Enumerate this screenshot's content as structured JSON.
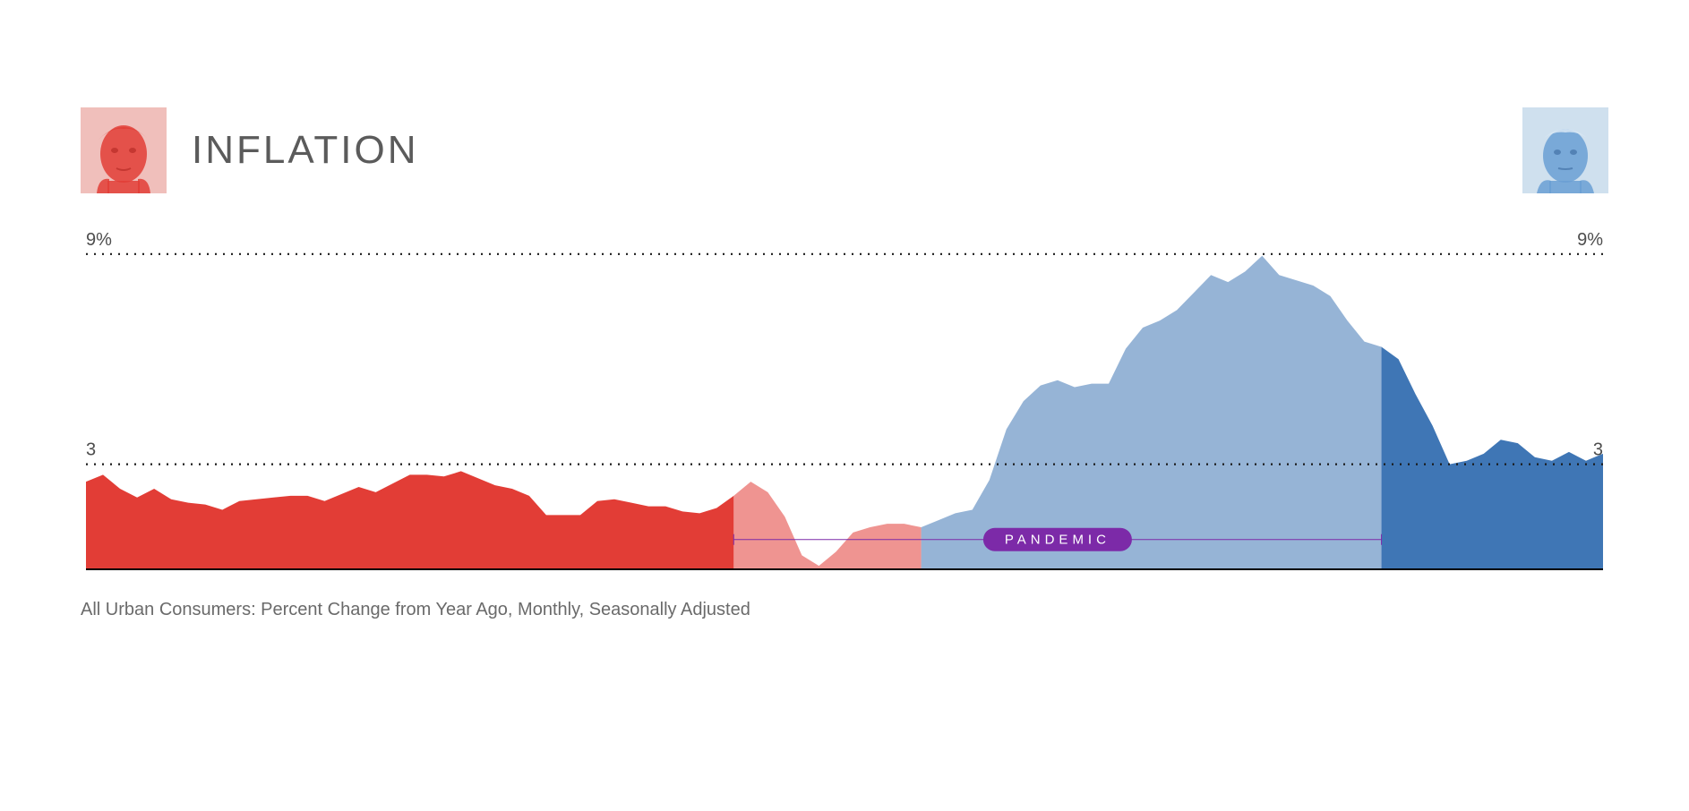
{
  "title": "INFLATION",
  "caption": "All Urban Consumers: Percent Change from Year Ago, Monthly, Seasonally Adjusted",
  "chart": {
    "type": "area",
    "y_ticks": [
      {
        "value": 3,
        "label_left": "3",
        "label_right": "3"
      },
      {
        "value": 9,
        "label_left": "9%",
        "label_right": "9%"
      }
    ],
    "ylim": [
      0,
      9.2
    ],
    "grid_color": "#1a1a1a",
    "baseline_color": "#000000",
    "background_color": "#ffffff",
    "label_fontsize": 20,
    "pandemic": {
      "label": "PANDEMIC",
      "start_index": 38,
      "end_index": 76,
      "pill_color": "#7c2aa8",
      "line_color": "#7c2aa8",
      "text_color": "#ffffff"
    },
    "segments": [
      {
        "name": "trump-pre-pandemic",
        "fill": "#e23d36",
        "opacity": 1.0,
        "start_index": 0,
        "end_index": 38,
        "values": [
          2.5,
          2.7,
          2.3,
          2.05,
          2.3,
          2.0,
          1.9,
          1.85,
          1.7,
          1.95,
          2.0,
          2.05,
          2.1,
          2.1,
          1.95,
          2.15,
          2.35,
          2.2,
          2.45,
          2.7,
          2.7,
          2.65,
          2.8,
          2.6,
          2.4,
          2.3,
          2.1,
          1.55,
          1.55,
          1.55,
          1.95,
          2.0,
          1.9,
          1.8,
          1.8,
          1.65,
          1.6,
          1.75,
          2.1
        ]
      },
      {
        "name": "trump-pandemic",
        "fill": "#e23d36",
        "opacity": 0.55,
        "start_index": 38,
        "end_index": 49,
        "values": [
          2.1,
          2.5,
          2.2,
          1.5,
          0.4,
          0.1,
          0.5,
          1.05,
          1.2,
          1.3,
          1.3,
          1.2
        ]
      },
      {
        "name": "biden-pandemic",
        "fill": "#3f76b5",
        "opacity": 0.55,
        "start_index": 49,
        "end_index": 76,
        "values": [
          1.2,
          1.4,
          1.6,
          1.7,
          2.55,
          4.0,
          4.8,
          5.25,
          5.4,
          5.2,
          5.3,
          5.3,
          6.3,
          6.9,
          7.1,
          7.4,
          7.9,
          8.4,
          8.2,
          8.5,
          8.95,
          8.4,
          8.25,
          8.1,
          7.8,
          7.1,
          6.5,
          6.35
        ]
      },
      {
        "name": "biden-post-pandemic",
        "fill": "#3f76b5",
        "opacity": 1.0,
        "start_index": 76,
        "end_index": 89,
        "values": [
          6.35,
          6.0,
          5.0,
          4.1,
          3.0,
          3.1,
          3.3,
          3.7,
          3.6,
          3.2,
          3.1,
          3.35,
          3.1,
          3.3
        ]
      }
    ],
    "n_points": 90
  },
  "portraits": {
    "left": {
      "name": "trump-portrait",
      "tint": "#e23d36",
      "bg": "#f5c9c6"
    },
    "right": {
      "name": "biden-portrait",
      "tint": "#3f76b5",
      "bg": "#cfe0ee"
    }
  }
}
